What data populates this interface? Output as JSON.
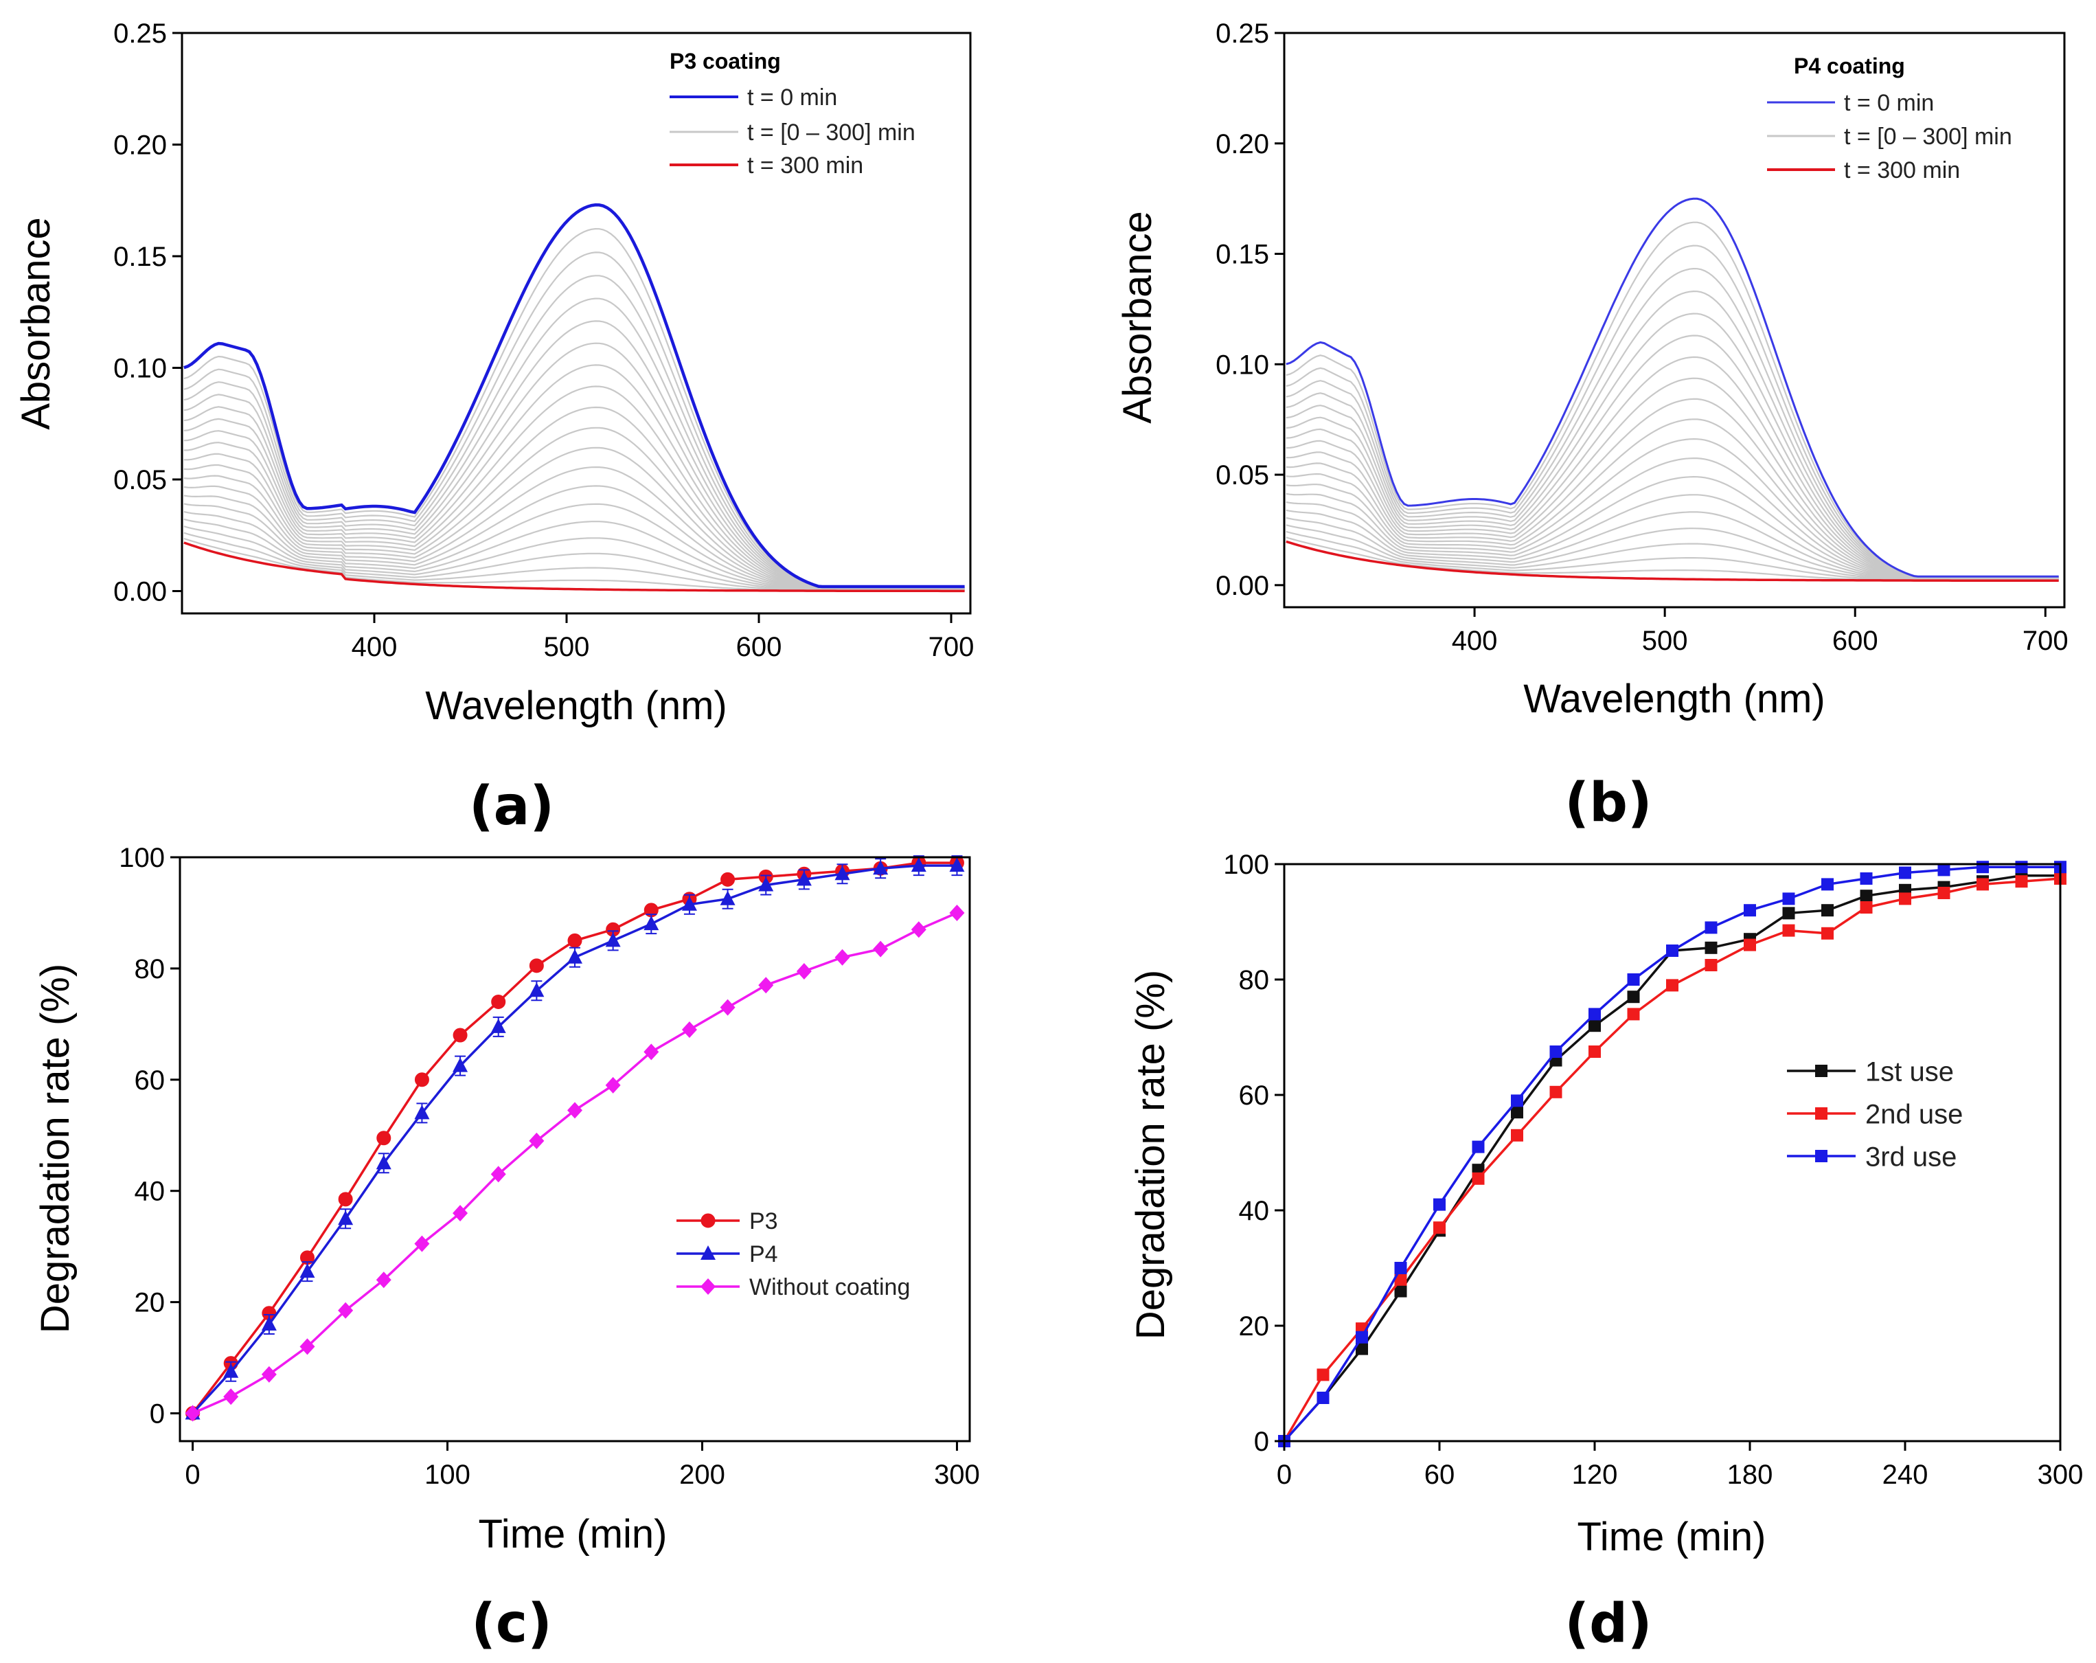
{
  "chart_data": [
    {
      "panel": "(a)",
      "type": "line",
      "title": "",
      "legend_title": "P3 coating",
      "xlabel": "Wavelength (nm)",
      "ylabel": "Absorbance",
      "xlim": [
        300,
        710
      ],
      "ylim": [
        -0.01,
        0.25
      ],
      "xticks": [
        400,
        500,
        600,
        700
      ],
      "yticks": [
        0.0,
        0.05,
        0.1,
        0.15,
        0.2,
        0.25
      ],
      "ytick_labels": [
        "0.00",
        "0.05",
        "0.10",
        "0.15",
        "0.20",
        "0.25"
      ],
      "legend_position": "top-right",
      "series": [
        {
          "name": "t = 0 min",
          "color": "#1a1adb",
          "kind": "initial"
        },
        {
          "name": "t = [0 – 300] min",
          "color": "#c8c8c8",
          "kind": "intermediate",
          "count": 19
        },
        {
          "name": "t = 300 min",
          "color": "#e0141e",
          "kind": "final"
        }
      ],
      "spectrum_features": {
        "peak_uv_nm": 320,
        "peak_uv_abs": 0.111,
        "shoulder_nm": 333,
        "shoulder_abs": 0.108,
        "min_nm": 365,
        "min_abs": 0.037,
        "plateau_nm": 400,
        "plateau_abs": 0.04,
        "peak_vis_nm": 516,
        "peak_vis_abs": 0.175,
        "start_abs": 0.1,
        "final_start_abs": 0.022,
        "step_nm": 383
      }
    },
    {
      "panel": "(b)",
      "type": "line",
      "title": "",
      "legend_title": "P4 coating",
      "xlabel": "Wavelength (nm)",
      "ylabel": "Absorbance",
      "xlim": [
        300,
        710
      ],
      "ylim": [
        -0.01,
        0.25
      ],
      "xticks": [
        400,
        500,
        600,
        700
      ],
      "yticks": [
        0.0,
        0.05,
        0.1,
        0.15,
        0.2,
        0.25
      ],
      "ytick_labels": [
        "0.00",
        "0.05",
        "0.10",
        "0.15",
        "0.20",
        "0.25"
      ],
      "legend_position": "top-right",
      "series": [
        {
          "name": "t = 0 min",
          "color": "#3a3ae6",
          "kind": "initial"
        },
        {
          "name": "t = [0 – 300] min",
          "color": "#c8c8c8",
          "kind": "intermediate",
          "count": 19
        },
        {
          "name": "t = 300 min",
          "color": "#e0141e",
          "kind": "final"
        }
      ],
      "spectrum_features": {
        "peak_uv_nm": 320,
        "peak_uv_abs": 0.11,
        "shoulder_nm": 333,
        "shoulder_abs": 0.104,
        "min_nm": 365,
        "min_abs": 0.036,
        "plateau_nm": 400,
        "plateau_abs": 0.039,
        "peak_vis_nm": 516,
        "peak_vis_abs": 0.175,
        "start_abs": 0.1,
        "final_start_abs": 0.02,
        "step_nm": null
      }
    },
    {
      "panel": "(c)",
      "type": "line",
      "title": "",
      "xlabel": "Time (min)",
      "ylabel": "Degradation rate (%)",
      "xlim": [
        -5,
        305
      ],
      "ylim": [
        -5,
        100
      ],
      "xticks": [
        0,
        100,
        200,
        300
      ],
      "yticks": [
        0,
        20,
        40,
        60,
        80,
        100
      ],
      "legend_position": "center-right",
      "x": [
        0,
        15,
        30,
        45,
        60,
        75,
        90,
        105,
        120,
        135,
        150,
        165,
        180,
        195,
        210,
        225,
        240,
        255,
        270,
        285,
        300
      ],
      "series": [
        {
          "name": "P3",
          "color": "#e8141e",
          "marker": "circle",
          "values": [
            0,
            9,
            18,
            28,
            38.5,
            49.5,
            60,
            68,
            74,
            80.5,
            85,
            87,
            90.5,
            92.5,
            96,
            96.5,
            97,
            97.5,
            98,
            99,
            99
          ]
        },
        {
          "name": "P4",
          "color": "#1c1cd8",
          "marker": "triangle",
          "error_bars": true,
          "values": [
            0,
            7.5,
            16,
            25.5,
            35,
            45,
            54,
            62.5,
            69.5,
            76,
            82,
            85,
            88,
            91.5,
            92.5,
            95,
            96,
            97,
            98,
            98.5,
            98.5
          ]
        },
        {
          "name": "Without coating",
          "color": "#f01af0",
          "marker": "diamond",
          "values": [
            0,
            3,
            7,
            12,
            18.5,
            24,
            30.5,
            36,
            43,
            49,
            54.5,
            59,
            65,
            69,
            73,
            77,
            79.5,
            82,
            83.5,
            87,
            90
          ]
        }
      ]
    },
    {
      "panel": "(d)",
      "type": "line",
      "title": "",
      "xlabel": "Time (min)",
      "ylabel": "Degradation rate (%)",
      "xlim": [
        0,
        300
      ],
      "ylim": [
        0,
        100
      ],
      "xticks": [
        0,
        60,
        120,
        180,
        240,
        300
      ],
      "yticks": [
        0,
        20,
        40,
        60,
        80,
        100
      ],
      "legend_position": "center-right",
      "x": [
        0,
        15,
        30,
        45,
        60,
        75,
        90,
        105,
        120,
        135,
        150,
        165,
        180,
        195,
        210,
        225,
        240,
        255,
        270,
        285,
        300
      ],
      "series": [
        {
          "name": "1st use",
          "color": "#111111",
          "marker": "square",
          "values": [
            0,
            7.5,
            16,
            26,
            36.5,
            47,
            57,
            66,
            72,
            77,
            85,
            85.5,
            87,
            91.5,
            92,
            94.5,
            95.5,
            96,
            97,
            98,
            98
          ]
        },
        {
          "name": "2nd use",
          "color": "#f01c1c",
          "marker": "square",
          "values": [
            0,
            11.5,
            19.5,
            28,
            37,
            45.5,
            53,
            60.5,
            67.5,
            74,
            79,
            82.5,
            86,
            88.5,
            88,
            92.5,
            94,
            95,
            96.5,
            97,
            97.5
          ]
        },
        {
          "name": "3rd use",
          "color": "#1a1ae6",
          "marker": "square",
          "values": [
            0,
            7.5,
            18,
            30,
            41,
            51,
            59,
            67.5,
            74,
            80,
            85,
            89,
            92,
            94,
            96.5,
            97.5,
            98.5,
            99,
            99.5,
            99.5,
            99.5
          ]
        }
      ]
    }
  ]
}
